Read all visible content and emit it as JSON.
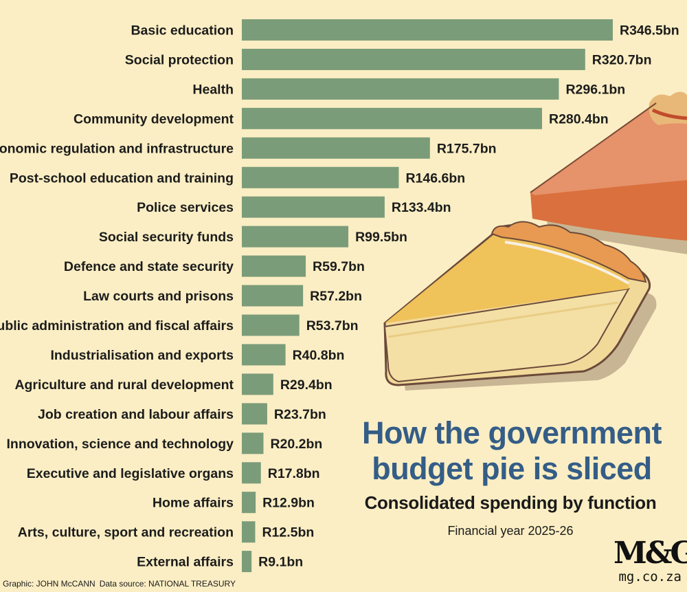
{
  "chart_data": {
    "type": "bar",
    "orientation": "horizontal",
    "title": "How the government budget pie is sliced",
    "title_lines": [
      "How the government",
      "budget pie is sliced"
    ],
    "subtitle": "Consolidated spending by function",
    "note": "Financial year 2025-26",
    "unit": "R billion",
    "categories": [
      "Basic education",
      "Social protection",
      "Health",
      "Community development",
      "Economic regulation and infrastructure",
      "Post-school education and training",
      "Police services",
      "Social security funds",
      "Defence and state security",
      "Law courts and prisons",
      "Public administration and fiscal affairs",
      "Industrialisation and exports",
      "Agriculture and rural development",
      "Job creation and labour affairs",
      "Innovation, science and technology",
      "Executive and legislative organs",
      "Home affairs",
      "Arts, culture, sport and recreation",
      "External affairs"
    ],
    "values": [
      346.5,
      320.7,
      296.1,
      280.4,
      175.7,
      146.6,
      133.4,
      99.5,
      59.7,
      57.2,
      53.7,
      40.8,
      29.4,
      23.7,
      20.2,
      17.8,
      12.9,
      12.5,
      9.1
    ],
    "value_labels": [
      "R346.5bn",
      "R320.7bn",
      "R296.1bn",
      "R280.4bn",
      "R175.7bn",
      "R146.6bn",
      "R133.4bn",
      "R99.5bn",
      "R59.7bn",
      "R57.2bn",
      "R53.7bn",
      "R40.8bn",
      "R29.4bn",
      "R23.7bn",
      "R20.2bn",
      "R17.8bn",
      "R12.9bn",
      "R12.5bn",
      "R9.1bn"
    ],
    "xlim": [
      0,
      346.5
    ],
    "grid": false,
    "bar_color": "#7b9c79",
    "background": "#fbeec4",
    "title_color": "#345d87"
  },
  "credits": {
    "graphic": "Graphic: JOHN McCANN",
    "source": "Data source: NATIONAL TREASURY"
  },
  "brand": {
    "logo": "M&G",
    "site": "mg.co.za"
  }
}
